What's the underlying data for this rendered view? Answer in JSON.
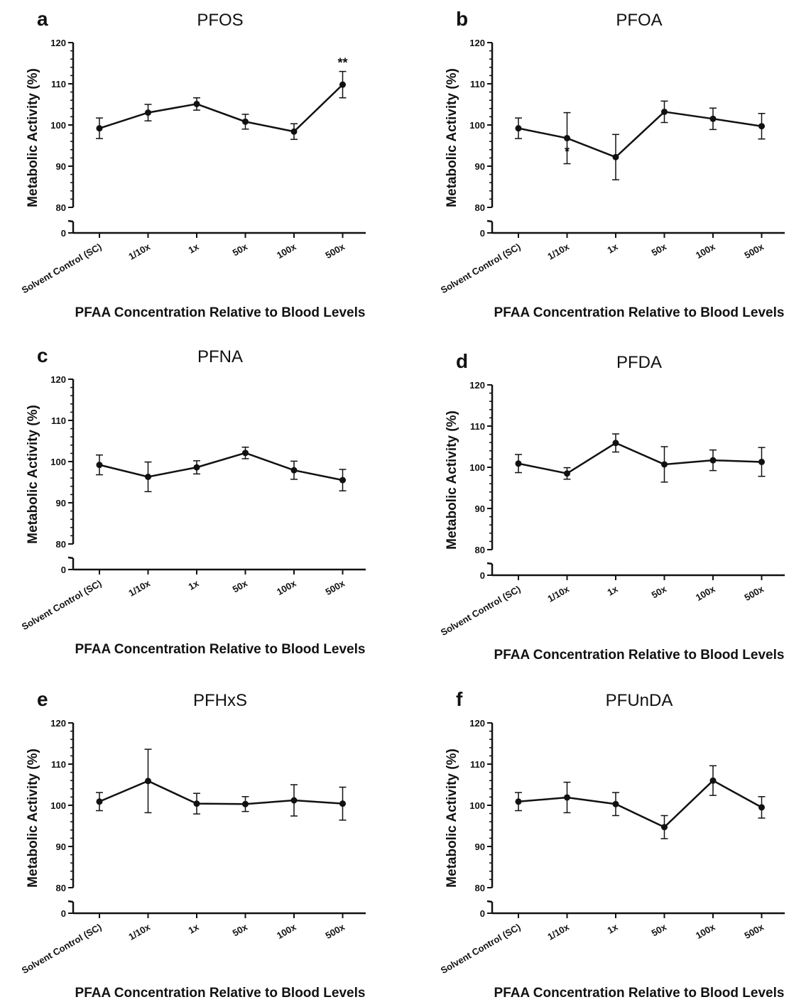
{
  "chart_data": [
    {
      "panel": "a",
      "type": "line",
      "title": "PFOS",
      "categories": [
        "Solvent Control (SC)",
        "1/10x",
        "1x",
        "50x",
        "100x",
        "500x"
      ],
      "series": [
        {
          "values": [
            99.2,
            103.0,
            105.1,
            100.8,
            98.4,
            109.8
          ],
          "error": [
            2.5,
            2.0,
            1.5,
            1.8,
            1.9,
            3.2
          ]
        }
      ],
      "annotations": [
        {
          "category_index": 5,
          "text": "**",
          "position": "above"
        }
      ],
      "xlabel": "PFAA Concentration Relative to Blood Levels",
      "ylabel": "Metabolic Activity (%)",
      "yticks": [
        0,
        80,
        90,
        100,
        110,
        120
      ],
      "ylim": [
        80,
        120
      ],
      "axis_break": true,
      "grid": false
    },
    {
      "panel": "b",
      "type": "line",
      "title": "PFOA",
      "categories": [
        "Solvent Control (SC)",
        "1/10x",
        "1x",
        "50x",
        "100x",
        "500x"
      ],
      "series": [
        {
          "values": [
            99.2,
            96.8,
            92.2,
            103.2,
            101.5,
            99.7
          ],
          "error": [
            2.5,
            6.2,
            5.5,
            2.6,
            2.6,
            3.1
          ]
        }
      ],
      "annotations": [
        {
          "category_index": 1,
          "text": "*",
          "position": "below"
        }
      ],
      "xlabel": "PFAA Concentration Relative to Blood Levels",
      "ylabel": "Metabolic Activity (%)",
      "yticks": [
        0,
        80,
        90,
        100,
        110,
        120
      ],
      "ylim": [
        80,
        120
      ],
      "axis_break": true,
      "grid": false
    },
    {
      "panel": "c",
      "type": "line",
      "title": "PFNA",
      "categories": [
        "Solvent Control (SC)",
        "1/10x",
        "1x",
        "50x",
        "100x",
        "500x"
      ],
      "series": [
        {
          "values": [
            99.2,
            96.3,
            98.6,
            102.1,
            97.9,
            95.5
          ],
          "error": [
            2.4,
            3.6,
            1.6,
            1.4,
            2.2,
            2.6
          ]
        }
      ],
      "annotations": [],
      "xlabel": "PFAA Concentration Relative to Blood Levels",
      "ylabel": "Metabolic Activity (%)",
      "yticks": [
        0,
        80,
        90,
        100,
        110,
        120
      ],
      "ylim": [
        80,
        120
      ],
      "axis_break": true,
      "grid": false
    },
    {
      "panel": "d",
      "type": "line",
      "title": "PFDA",
      "categories": [
        "Solvent Control (SC)",
        "1/10x",
        "1x",
        "50x",
        "100x",
        "500x"
      ],
      "series": [
        {
          "values": [
            100.9,
            98.5,
            105.9,
            100.7,
            101.7,
            101.3
          ],
          "error": [
            2.2,
            1.4,
            2.2,
            4.3,
            2.5,
            3.5
          ]
        }
      ],
      "annotations": [],
      "xlabel": "PFAA Concentration Relative to Blood Levels",
      "ylabel": "Metabolic Activity (%)",
      "yticks": [
        0,
        80,
        90,
        100,
        110,
        120
      ],
      "ylim": [
        80,
        120
      ],
      "axis_break": true,
      "grid": false
    },
    {
      "panel": "e",
      "type": "line",
      "title": "PFHxS",
      "categories": [
        "Solvent Control (SC)",
        "1/10x",
        "1x",
        "50x",
        "100x",
        "500x"
      ],
      "series": [
        {
          "values": [
            100.9,
            105.9,
            100.4,
            100.3,
            101.2,
            100.4
          ],
          "error": [
            2.2,
            7.7,
            2.5,
            1.8,
            3.8,
            4.0
          ]
        }
      ],
      "annotations": [],
      "xlabel": "PFAA Concentration Relative to Blood Levels",
      "ylabel": "Metabolic Activity (%)",
      "yticks": [
        0,
        80,
        90,
        100,
        110,
        120
      ],
      "ylim": [
        80,
        120
      ],
      "axis_break": true,
      "grid": false
    },
    {
      "panel": "f",
      "type": "line",
      "title": "PFUnDA",
      "categories": [
        "Solvent Control (SC)",
        "1/10x",
        "1x",
        "50x",
        "100x",
        "500x"
      ],
      "series": [
        {
          "values": [
            100.9,
            101.9,
            100.3,
            94.7,
            106.0,
            99.5
          ],
          "error": [
            2.2,
            3.7,
            2.8,
            2.8,
            3.6,
            2.6
          ]
        }
      ],
      "annotations": [],
      "xlabel": "PFAA Concentration Relative to Blood Levels",
      "ylabel": "Metabolic Activity (%)",
      "yticks": [
        0,
        80,
        90,
        100,
        110,
        120
      ],
      "ylim": [
        80,
        120
      ],
      "axis_break": true,
      "grid": false
    }
  ]
}
